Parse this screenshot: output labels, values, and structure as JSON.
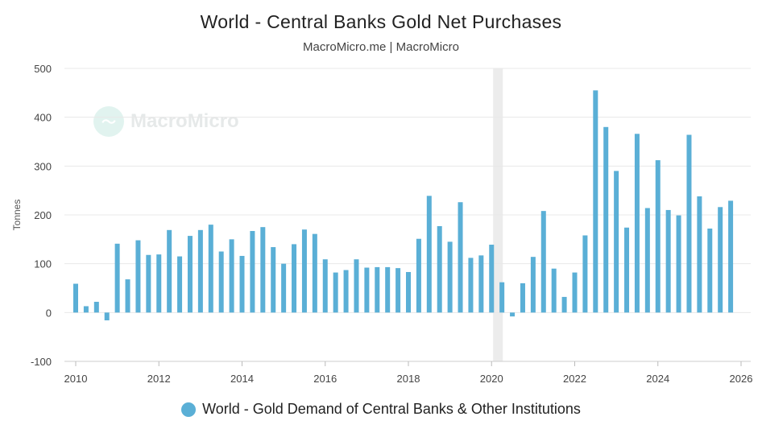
{
  "header": {
    "title": "World - Central Banks Gold Net Purchases",
    "subtitle": "MacroMicro.me | MacroMicro"
  },
  "watermark": {
    "text": "MacroMicro",
    "icon": "wave-chart-icon"
  },
  "legend": {
    "label": "World - Gold Demand of Central Banks & Other Institutions",
    "color": "#5aafd6"
  },
  "colors": {
    "bar": "#5aafd6",
    "recession": "#ececec",
    "grid": "#e8e8e8"
  },
  "chart_data": {
    "type": "bar",
    "title": "World - Central Banks Gold Net Purchases",
    "subtitle": "MacroMicro.me | MacroMicro",
    "ylabel": "Tonnes",
    "xlabel": "",
    "ylim": [
      -100,
      500
    ],
    "yticks": [
      -100,
      0,
      100,
      200,
      300,
      400,
      500
    ],
    "xlim": [
      2010,
      2026
    ],
    "xticks": [
      2010,
      2012,
      2014,
      2016,
      2018,
      2020,
      2022,
      2024,
      2026
    ],
    "shaded_region": [
      2020.0,
      2020.25
    ],
    "series": [
      {
        "name": "World - Gold Demand of Central Banks & Other Institutions",
        "x": [
          2010.0,
          2010.25,
          2010.5,
          2010.75,
          2011.0,
          2011.25,
          2011.5,
          2011.75,
          2012.0,
          2012.25,
          2012.5,
          2012.75,
          2013.0,
          2013.25,
          2013.5,
          2013.75,
          2014.0,
          2014.25,
          2014.5,
          2014.75,
          2015.0,
          2015.25,
          2015.5,
          2015.75,
          2016.0,
          2016.25,
          2016.5,
          2016.75,
          2017.0,
          2017.25,
          2017.5,
          2017.75,
          2018.0,
          2018.25,
          2018.5,
          2018.75,
          2019.0,
          2019.25,
          2019.5,
          2019.75,
          2020.0,
          2020.25,
          2020.5,
          2020.75,
          2021.0,
          2021.25,
          2021.5,
          2021.75,
          2022.0,
          2022.25,
          2022.5,
          2022.75,
          2023.0,
          2023.25,
          2023.5,
          2023.75,
          2024.0,
          2024.25,
          2024.5,
          2024.75,
          2025.0,
          2025.25,
          2025.5,
          2025.75
        ],
        "values": [
          59,
          13,
          22,
          -16,
          141,
          68,
          148,
          118,
          119,
          169,
          115,
          157,
          169,
          180,
          125,
          150,
          116,
          167,
          175,
          134,
          100,
          140,
          170,
          161,
          109,
          82,
          87,
          109,
          92,
          93,
          93,
          91,
          83,
          151,
          239,
          177,
          145,
          226,
          112,
          117,
          139,
          62,
          -8,
          60,
          114,
          208,
          90,
          32,
          82,
          158,
          455,
          380,
          290,
          174,
          366,
          214,
          312,
          210,
          199,
          364,
          238,
          172,
          216,
          229
        ]
      }
    ]
  }
}
